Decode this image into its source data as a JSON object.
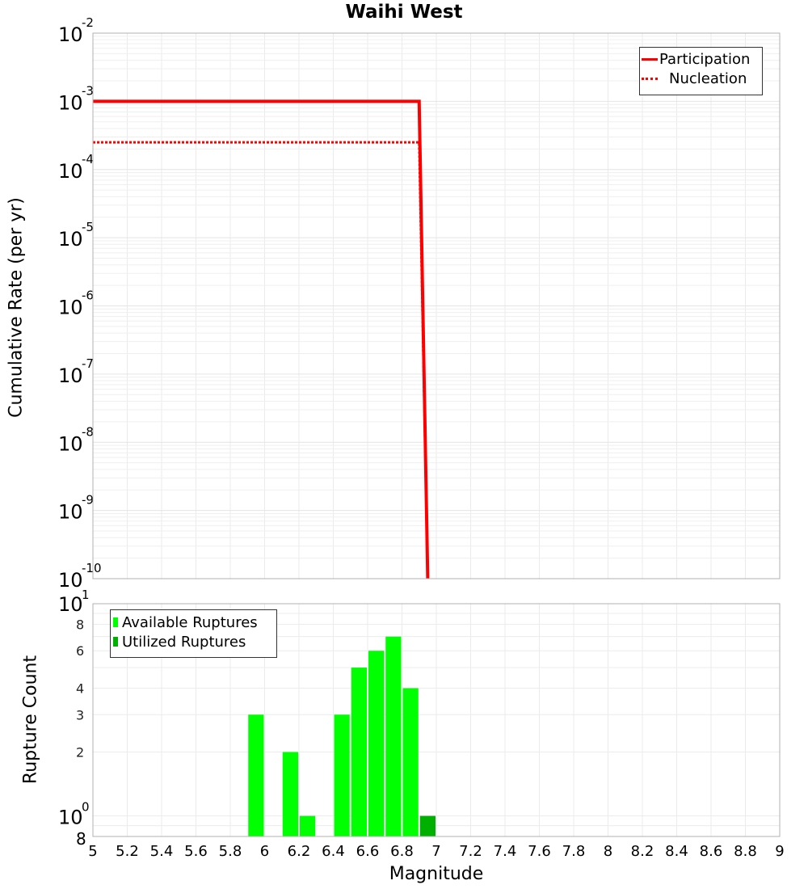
{
  "chart_data": [
    {
      "type": "line",
      "title": "Waihi West",
      "xlabel": "Magnitude",
      "ylabel": "Cumulative Rate (per yr)",
      "xlim": [
        5,
        9
      ],
      "ylim": [
        1e-10,
        0.01
      ],
      "yscale": "log",
      "grid": true,
      "legend_position": "upper right",
      "y_tick_labels": [
        "10^-2",
        "10^-3",
        "10^-4",
        "10^-5",
        "10^-6",
        "10^-7",
        "10^-8",
        "10^-9",
        "10^-10"
      ],
      "series": [
        {
          "name": "Participation",
          "style": "solid",
          "color": "#ff0000",
          "x": [
            5.0,
            6.9,
            6.95
          ],
          "y": [
            0.001,
            0.001,
            1e-10
          ]
        },
        {
          "name": "Nucleation",
          "style": "dotted",
          "color": "#ff0000",
          "x": [
            5.0,
            6.9,
            6.95
          ],
          "y": [
            0.00025,
            0.00025,
            1e-10
          ]
        }
      ]
    },
    {
      "type": "bar",
      "xlabel": "Magnitude",
      "ylabel": "Rupture Count",
      "xlim": [
        5,
        9
      ],
      "ylim": [
        0.8,
        10
      ],
      "yscale": "log",
      "grid": true,
      "legend_position": "upper left",
      "x_tick_labels": [
        "5",
        "5.2",
        "5.4",
        "5.6",
        "5.8",
        "6",
        "6.2",
        "6.4",
        "6.6",
        "6.8",
        "7",
        "7.2",
        "7.4",
        "7.6",
        "7.8",
        "8",
        "8.2",
        "8.4",
        "8.6",
        "8.8",
        "9"
      ],
      "y_tick_labels": [
        "10^1",
        "8",
        "6",
        "4",
        "3",
        "2",
        "10^0",
        "8"
      ],
      "categories": [
        5.95,
        6.15,
        6.25,
        6.45,
        6.55,
        6.65,
        6.75,
        6.85,
        6.95
      ],
      "series": [
        {
          "name": "Available Ruptures",
          "color": "#00ff00",
          "values": [
            3,
            2,
            1,
            3,
            5,
            6,
            7,
            4,
            0
          ]
        },
        {
          "name": "Utilized Ruptures",
          "color": "#00b000",
          "values": [
            0,
            0,
            0,
            0,
            0,
            0,
            0,
            0,
            1
          ]
        }
      ]
    }
  ],
  "header": {
    "title": "Waihi West"
  },
  "top_plot": {
    "ylabel": "Cumulative Rate (per yr)",
    "legend": [
      {
        "label": "Participation",
        "color": "#ff0000",
        "style": "solid"
      },
      {
        "label": "Nucleation",
        "color": "#ff0000",
        "style": "dotted"
      }
    ]
  },
  "bottom_plot": {
    "ylabel": "Rupture Count",
    "xlabel": "Magnitude",
    "legend": [
      {
        "label": "Available Ruptures",
        "color": "#00ff00"
      },
      {
        "label": "Utilized Ruptures",
        "color": "#00b000"
      }
    ]
  }
}
